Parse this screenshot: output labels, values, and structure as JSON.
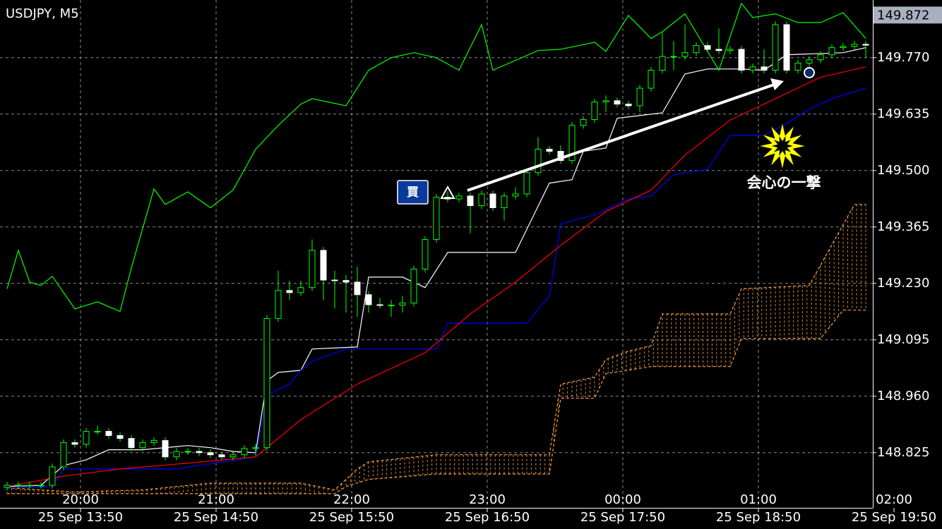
{
  "chart_data": {
    "type": "candlestick",
    "title": "USDJPY, M5",
    "xlim": [
      -0.625,
      76.625
    ],
    "ylim": [
      148.693,
      149.908
    ],
    "yticks": [
      {
        "value": 149.77,
        "label": "149.770"
      },
      149.635,
      {
        "value": 149.5,
        "label": "149.500"
      },
      149.365,
      {
        "value": 149.23,
        "label": "149.230"
      },
      149.095,
      {
        "value": 148.96,
        "label": "148.960"
      },
      148.825
    ],
    "current_price": 149.872,
    "xticks": [
      {
        "value": 6.5,
        "label": "20:00"
      },
      {
        "value": 18.5,
        "label": "21:00"
      },
      {
        "value": 30.5,
        "label": "22:00"
      },
      {
        "value": 42.5,
        "label": "23:00"
      },
      {
        "value": 54.5,
        "label": "00:00"
      },
      {
        "value": 66.5,
        "label": "01:00"
      },
      {
        "value": 78.5,
        "label": "02:00"
      }
    ],
    "xticks_bottom": [
      {
        "value": 6.5,
        "label": "25 Sep 13:50"
      },
      {
        "value": 18.5,
        "label": "25 Sep 14:50"
      },
      {
        "value": 30.5,
        "label": "25 Sep 15:50"
      },
      {
        "value": 42.5,
        "label": "25 Sep 16:50"
      },
      {
        "value": 54.5,
        "label": "25 Sep 17:50"
      },
      {
        "value": 66.5,
        "label": "25 Sep 18:50"
      },
      {
        "value": 78.5,
        "label": "25 Sep 19:50"
      }
    ],
    "grid": true,
    "open": [
      148.742,
      148.747,
      148.747,
      148.747,
      148.747,
      148.791,
      148.849,
      148.845,
      148.876,
      148.876,
      148.866,
      148.859,
      148.837,
      148.849,
      148.854,
      148.815,
      148.828,
      148.828,
      148.825,
      148.82,
      148.815,
      148.82,
      148.835,
      148.837,
      149.146,
      149.213,
      149.208,
      149.22,
      149.309,
      149.238,
      149.237,
      149.233,
      149.203,
      149.179,
      149.178,
      149.178,
      149.183,
      149.264,
      149.335,
      149.436,
      149.432,
      149.439,
      149.416,
      149.444,
      149.411,
      149.439,
      149.444,
      149.495,
      149.551,
      149.546,
      149.524,
      149.608,
      149.622,
      149.664,
      149.667,
      149.659,
      149.655,
      149.697,
      149.74,
      149.773,
      149.773,
      149.782,
      149.799,
      149.79,
      149.787,
      149.79,
      149.74,
      149.748,
      149.74,
      149.849,
      149.74,
      149.757,
      149.765,
      149.777,
      149.794,
      149.797,
      149.802
    ],
    "high": [
      148.755,
      148.755,
      148.755,
      148.755,
      148.799,
      148.857,
      148.857,
      148.884,
      148.89,
      148.884,
      148.874,
      148.867,
      148.857,
      148.862,
      148.862,
      148.836,
      148.836,
      148.836,
      148.833,
      148.828,
      148.828,
      148.843,
      148.845,
      149.154,
      149.26,
      149.236,
      149.236,
      149.335,
      149.317,
      149.26,
      149.25,
      149.27,
      149.211,
      149.195,
      149.19,
      149.2,
      149.272,
      149.343,
      149.444,
      149.45,
      149.447,
      149.447,
      149.452,
      149.452,
      149.447,
      149.46,
      149.503,
      149.58,
      149.559,
      149.56,
      149.616,
      149.63,
      149.672,
      149.68,
      149.675,
      149.667,
      149.705,
      149.748,
      149.83,
      149.81,
      149.85,
      149.807,
      149.807,
      149.84,
      149.798,
      149.798,
      149.756,
      149.79,
      149.857,
      149.857,
      149.765,
      149.773,
      149.785,
      149.802,
      149.805,
      149.81,
      149.81
    ],
    "low": [
      148.734,
      148.739,
      148.739,
      148.739,
      148.739,
      148.783,
      148.837,
      148.837,
      148.868,
      148.858,
      148.851,
      148.829,
      148.829,
      148.841,
      148.807,
      148.807,
      148.82,
      148.817,
      148.812,
      148.807,
      148.807,
      148.812,
      148.818,
      148.829,
      149.138,
      149.19,
      149.2,
      149.212,
      149.19,
      149.17,
      149.16,
      149.15,
      149.16,
      149.17,
      149.15,
      149.16,
      149.175,
      149.256,
      149.327,
      149.424,
      149.424,
      149.35,
      149.408,
      149.403,
      149.38,
      149.431,
      149.436,
      149.487,
      149.538,
      149.516,
      149.516,
      149.6,
      149.614,
      149.64,
      149.651,
      149.647,
      149.64,
      149.689,
      149.732,
      149.74,
      149.765,
      149.774,
      149.782,
      149.779,
      149.779,
      149.732,
      149.732,
      149.732,
      149.732,
      149.732,
      149.732,
      149.749,
      149.757,
      149.769,
      149.786,
      149.789,
      149.77
    ],
    "close": [
      148.747,
      148.747,
      148.747,
      148.747,
      148.791,
      148.849,
      148.845,
      148.876,
      148.876,
      148.866,
      148.859,
      148.837,
      148.849,
      148.854,
      148.815,
      148.828,
      148.828,
      148.825,
      148.82,
      148.815,
      148.82,
      148.835,
      148.837,
      149.146,
      149.213,
      149.208,
      149.22,
      149.309,
      149.238,
      149.237,
      149.233,
      149.203,
      149.179,
      149.178,
      149.178,
      149.183,
      149.264,
      149.335,
      149.436,
      149.432,
      149.439,
      149.416,
      149.444,
      149.411,
      149.439,
      149.444,
      149.495,
      149.551,
      149.546,
      149.524,
      149.608,
      149.622,
      149.664,
      149.667,
      149.659,
      149.655,
      149.697,
      149.74,
      149.773,
      149.773,
      149.782,
      149.799,
      149.79,
      149.787,
      149.79,
      149.74,
      149.748,
      149.74,
      149.849,
      149.74,
      149.757,
      149.765,
      149.777,
      149.794,
      149.797,
      149.802,
      149.8
    ],
    "up_color": "#000000",
    "down_color": "#ffffff",
    "wick_color": "#00ff00",
    "lines": [
      {
        "color": "#ffffff",
        "x": [
          0,
          3,
          5,
          7,
          9,
          12,
          16,
          18,
          20,
          22,
          23,
          24,
          26,
          27,
          31,
          32,
          35,
          37,
          39,
          45,
          48,
          50,
          51,
          53,
          54,
          58,
          60,
          62,
          65,
          67,
          69,
          74,
          76
        ],
        "values": [
          148.744,
          148.747,
          148.794,
          148.808,
          148.832,
          148.832,
          148.842,
          148.837,
          148.828,
          148.825,
          148.997,
          149.017,
          149.022,
          149.073,
          149.078,
          149.245,
          149.245,
          149.22,
          149.304,
          149.304,
          149.47,
          149.478,
          149.546,
          149.554,
          149.625,
          149.638,
          149.731,
          149.743,
          149.743,
          149.74,
          149.777,
          149.782,
          149.794
        ]
      },
      {
        "color": "#0000ff",
        "x": [
          0,
          4,
          5,
          15,
          22,
          23,
          25,
          26,
          27,
          30,
          38,
          39,
          46,
          48,
          49,
          52,
          55,
          57,
          59,
          62,
          64,
          67,
          69,
          71,
          73,
          76
        ],
        "values": [
          148.741,
          148.744,
          148.786,
          148.786,
          148.815,
          148.963,
          148.989,
          149.022,
          149.044,
          149.073,
          149.073,
          149.135,
          149.135,
          149.2,
          149.372,
          149.394,
          149.432,
          149.439,
          149.49,
          149.503,
          149.584,
          149.584,
          149.613,
          149.647,
          149.672,
          149.697
        ]
      },
      {
        "color": "#ff0000",
        "x": [
          0,
          5,
          10,
          16,
          22,
          26,
          31,
          37,
          41,
          45,
          49,
          53,
          57,
          60,
          64,
          68,
          72,
          76
        ],
        "values": [
          148.744,
          148.769,
          148.786,
          148.8,
          148.815,
          148.904,
          148.989,
          149.064,
          149.157,
          149.233,
          149.321,
          149.402,
          149.453,
          149.537,
          149.621,
          149.672,
          149.723,
          149.748
        ]
      },
      {
        "color": "#00ff00",
        "x": [
          0,
          1,
          2,
          3,
          4,
          6,
          8,
          10,
          11,
          13,
          14,
          16,
          18,
          20,
          22,
          24,
          26,
          27,
          30,
          32,
          34,
          36,
          38,
          40,
          42,
          43,
          47,
          49,
          52,
          53,
          55,
          57,
          58,
          60,
          63,
          65,
          66,
          68,
          70,
          72,
          74,
          76
        ],
        "values": [
          149.217,
          149.309,
          149.233,
          149.225,
          149.247,
          149.169,
          149.186,
          149.163,
          149.267,
          149.456,
          149.419,
          149.449,
          149.411,
          149.453,
          149.551,
          149.608,
          149.659,
          149.672,
          149.655,
          149.74,
          149.77,
          149.782,
          149.77,
          149.74,
          149.849,
          149.74,
          149.787,
          149.79,
          149.807,
          149.785,
          149.871,
          149.816,
          149.832,
          149.875,
          149.74,
          149.9,
          149.866,
          149.875,
          149.854,
          149.854,
          149.878,
          149.816
        ]
      }
    ],
    "cloud": {
      "color": "#ffa040",
      "span_a": {
        "x": [
          0,
          6,
          12,
          18,
          26,
          29,
          30,
          31,
          32,
          38,
          48,
          49,
          52,
          53,
          55,
          57,
          58,
          64,
          65,
          71,
          75,
          76
        ],
        "values": [
          148.741,
          148.731,
          148.736,
          148.752,
          148.752,
          148.736,
          148.761,
          148.786,
          148.803,
          148.82,
          148.82,
          148.989,
          149.006,
          149.048,
          149.068,
          149.081,
          149.157,
          149.157,
          149.217,
          149.225,
          149.419,
          149.419
        ]
      },
      "span_b": {
        "x": [
          0,
          29,
          30,
          32,
          38,
          48,
          49,
          52,
          53,
          57,
          64,
          65,
          72,
          74,
          76
        ],
        "values": [
          148.727,
          148.727,
          148.744,
          148.761,
          148.774,
          148.774,
          148.955,
          148.955,
          149.014,
          149.031,
          149.031,
          149.098,
          149.098,
          149.166,
          149.166
        ]
      }
    },
    "annotations": {
      "buy_label": "買",
      "strike_label": "会心の一撃"
    }
  }
}
